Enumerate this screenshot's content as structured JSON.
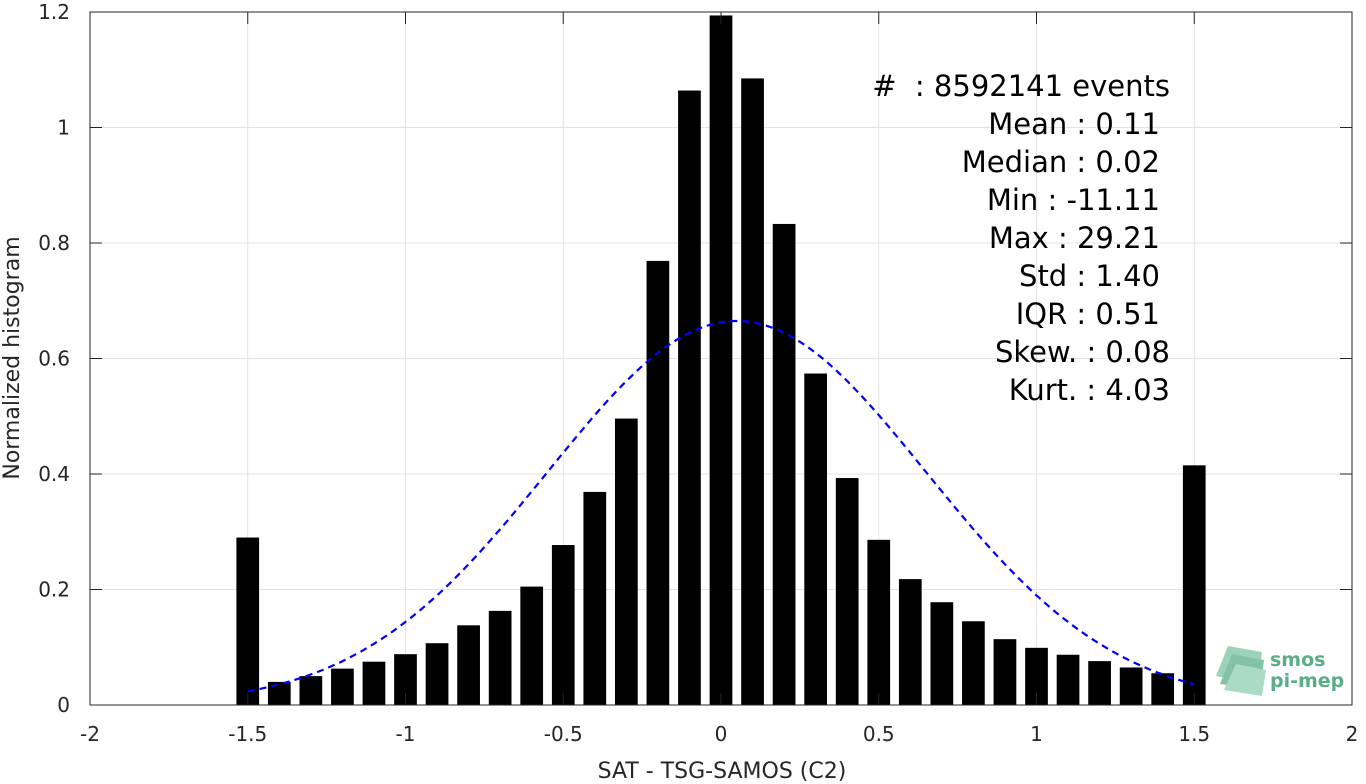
{
  "chart_data": {
    "type": "bar",
    "xlabel": "SAT - TSG-SAMOS (C2)",
    "ylabel": "Normalized histogram",
    "xlim": [
      -2,
      2
    ],
    "ylim": [
      0,
      1.2
    ],
    "grid": true,
    "x_ticks": [
      "-2",
      "-1.5",
      "-1",
      "-0.5",
      "0",
      "0.5",
      "1",
      "1.5",
      "2"
    ],
    "y_ticks": [
      "0",
      "0.2",
      "0.4",
      "0.6",
      "0.8",
      "1",
      "1.2"
    ],
    "bar_color": "#000000",
    "x": [
      -1.5,
      -1.4,
      -1.3,
      -1.2,
      -1.1,
      -1.0,
      -0.9,
      -0.8,
      -0.7,
      -0.6,
      -0.5,
      -0.4,
      -0.3,
      -0.2,
      -0.1,
      0.0,
      0.1,
      0.2,
      0.3,
      0.4,
      0.5,
      0.6,
      0.7,
      0.8,
      0.9,
      1.0,
      1.1,
      1.2,
      1.3,
      1.4,
      1.5
    ],
    "values": [
      0.29,
      0.04,
      0.05,
      0.063,
      0.075,
      0.088,
      0.107,
      0.138,
      0.163,
      0.205,
      0.277,
      0.369,
      0.496,
      0.769,
      1.064,
      1.194,
      1.085,
      0.833,
      0.574,
      0.393,
      0.286,
      0.218,
      0.178,
      0.145,
      0.114,
      0.099,
      0.087,
      0.076,
      0.065,
      0.055,
      0.415
    ],
    "fit_curve": {
      "type": "gaussian",
      "color": "#0000ff",
      "style": "dashed",
      "mean": 0.05,
      "std": 0.6,
      "peak": 0.665,
      "x_range": [
        -1.5,
        1.5
      ]
    },
    "stats": {
      "events": "#  : 8592141 events",
      "lines": [
        "Mean : 0.11",
        "Median : 0.02",
        "Min : -11.11",
        "Max : 29.21",
        "Std : 1.40",
        "IQR : 0.51",
        "Skew. : 0.08",
        "Kurt. : 4.03"
      ]
    }
  },
  "logo": {
    "line1": "smos",
    "line2": "pi-mep",
    "color": "#5aae86"
  }
}
